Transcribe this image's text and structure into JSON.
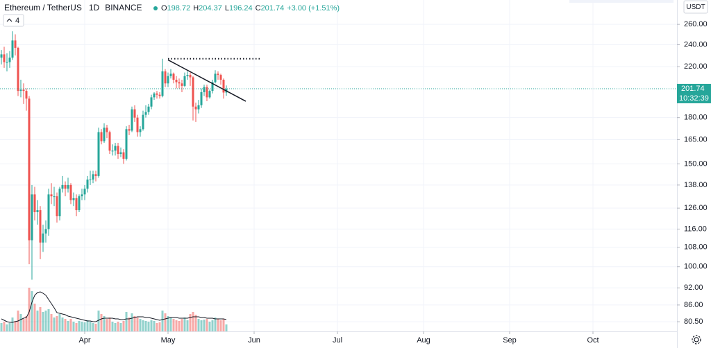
{
  "header": {
    "symbol": "Ethereum / TetherUS",
    "interval": "1D",
    "exchange": "BINANCE",
    "ohlc_labels": [
      "O",
      "H",
      "L",
      "C"
    ],
    "change": "+3.00 (+1.51%)",
    "indicator_count": "4",
    "currency": "USDT",
    "countdown": "10:32:39"
  },
  "chart_data": {
    "type": "candlestick",
    "log_scale": true,
    "grid": true,
    "up_color": "#26a69a",
    "down_color": "#ef5350",
    "xlim": [
      -0.5,
      243.25
    ],
    "xticks": [
      {
        "value": 30,
        "label": "Apr"
      },
      {
        "value": 60,
        "label": "May"
      },
      {
        "value": 91,
        "label": "Jun"
      },
      {
        "value": 121,
        "label": "Jul"
      },
      {
        "value": 152,
        "label": "Aug"
      },
      {
        "value": 183,
        "label": "Sep"
      },
      {
        "value": 213,
        "label": "Oct"
      }
    ],
    "ylim": [
      77.5,
      286.2
    ],
    "yticks": [
      {
        "value": 260,
        "label": "260.00"
      },
      {
        "value": 240,
        "label": "240.00"
      },
      {
        "value": 220,
        "label": "220.00"
      },
      {
        "value": 180,
        "label": "180.00"
      },
      {
        "value": 165,
        "label": "165.00"
      },
      {
        "value": 150,
        "label": "150.00"
      },
      {
        "value": 138,
        "label": "138.00"
      },
      {
        "value": 126,
        "label": "126.00"
      },
      {
        "value": 116,
        "label": "116.00"
      },
      {
        "value": 108,
        "label": "108.00"
      },
      {
        "value": 100,
        "label": "100.00"
      },
      {
        "value": 92,
        "label": "92.00"
      },
      {
        "value": 86,
        "label": "86.00"
      },
      {
        "value": 80.5,
        "label": "80.50"
      }
    ],
    "open": [
      228,
      231,
      224,
      224,
      228,
      244,
      237,
      200,
      201,
      200,
      194,
      111,
      133,
      124,
      125,
      110,
      114,
      116,
      133,
      132,
      132,
      122,
      136,
      138,
      136,
      138,
      130,
      131,
      125,
      132,
      133,
      136,
      141,
      141,
      144,
      143,
      170,
      164,
      173,
      170,
      158,
      158,
      161,
      156,
      157,
      153,
      172,
      171,
      186,
      180,
      170,
      172,
      182,
      184,
      188,
      195,
      198,
      197,
      196,
      216,
      206,
      212,
      214,
      209,
      207,
      206,
      204,
      212,
      213,
      211,
      188,
      186,
      189,
      199,
      203,
      195,
      200,
      207,
      214,
      213,
      209,
      198.72
    ],
    "high": [
      235,
      238,
      232,
      234,
      253,
      250,
      238,
      209,
      206,
      202,
      196,
      138,
      137,
      130,
      127,
      118,
      120,
      136,
      139,
      137,
      134,
      137,
      143,
      140,
      142,
      139,
      134,
      133,
      133,
      136,
      138,
      143,
      146,
      146,
      146,
      173,
      172,
      176,
      175,
      171,
      162,
      163,
      163,
      160,
      159,
      174,
      175,
      188,
      189,
      182,
      174,
      185,
      189,
      190,
      197,
      199,
      200,
      199,
      227,
      218,
      215,
      218,
      215,
      212,
      210,
      209,
      215,
      216,
      215,
      212,
      191,
      193,
      202,
      205,
      205,
      201,
      209,
      217,
      216,
      214,
      210,
      204.37
    ],
    "low": [
      222,
      219,
      216,
      219,
      226,
      230,
      196,
      195,
      190,
      185,
      101,
      95,
      120,
      118,
      103,
      106,
      110,
      113,
      128,
      127,
      119,
      120,
      134,
      132,
      134,
      128,
      127,
      122,
      124,
      130,
      130,
      134,
      138,
      139,
      140,
      142,
      162,
      163,
      166,
      156,
      155,
      155,
      153,
      154,
      150,
      152,
      168,
      170,
      177,
      167,
      167,
      171,
      180,
      182,
      186,
      193,
      194,
      194,
      195,
      203,
      203,
      210,
      206,
      202,
      202,
      199,
      203,
      209,
      204,
      178,
      177,
      183,
      187,
      196,
      192,
      194,
      198,
      206,
      209,
      205,
      194,
      196.24
    ],
    "close": [
      231,
      224,
      224,
      228,
      244,
      237,
      200,
      201,
      200,
      194,
      111,
      133,
      124,
      125,
      110,
      114,
      116,
      133,
      132,
      132,
      122,
      136,
      138,
      136,
      138,
      130,
      131,
      125,
      132,
      133,
      136,
      141,
      141,
      144,
      143,
      170,
      164,
      173,
      170,
      158,
      158,
      161,
      156,
      157,
      153,
      172,
      171,
      186,
      180,
      170,
      172,
      182,
      184,
      188,
      195,
      198,
      197,
      196,
      216,
      206,
      212,
      214,
      209,
      207,
      206,
      204,
      212,
      213,
      211,
      188,
      186,
      189,
      199,
      203,
      195,
      200,
      207,
      214,
      213,
      209,
      198.72,
      201.74
    ],
    "vlim": [
      0,
      100
    ],
    "volume": [
      12,
      14,
      10,
      12,
      20,
      15,
      30,
      25,
      18,
      22,
      63,
      58,
      40,
      30,
      35,
      28,
      30,
      32,
      25,
      20,
      22,
      25,
      20,
      18,
      15,
      18,
      14,
      12,
      15,
      14,
      13,
      16,
      14,
      12,
      11,
      30,
      25,
      22,
      18,
      20,
      14,
      12,
      14,
      12,
      15,
      28,
      20,
      26,
      22,
      20,
      18,
      16,
      15,
      14,
      16,
      15,
      12,
      13,
      30,
      26,
      22,
      20,
      18,
      16,
      15,
      18,
      20,
      16,
      25,
      28,
      24,
      18,
      16,
      17,
      18,
      14,
      16,
      20,
      18,
      16,
      18,
      10
    ],
    "volume_ma": [
      18,
      16,
      14,
      13,
      13,
      14,
      15,
      17,
      19,
      20,
      28,
      42,
      52,
      56,
      57,
      55,
      52,
      46,
      40,
      34,
      27,
      26,
      25,
      24,
      22,
      21,
      20,
      19,
      18,
      17,
      16,
      15,
      15,
      14,
      14,
      16,
      18,
      19,
      19,
      19,
      19,
      18,
      18,
      17,
      17,
      18,
      18,
      19,
      20,
      21,
      21,
      21,
      20,
      20,
      19,
      18,
      17,
      16,
      17,
      18,
      19,
      20,
      20,
      20,
      19,
      19,
      19,
      19,
      20,
      21,
      21,
      21,
      20,
      20,
      19,
      19,
      19,
      18,
      18,
      18,
      18,
      17
    ],
    "drawings": [
      {
        "kind": "hline",
        "value": 227,
        "x": [
          60,
          93
        ]
      },
      {
        "kind": "trendline",
        "x": [
          60,
          88
        ],
        "y": [
          226,
          192
        ]
      }
    ]
  }
}
